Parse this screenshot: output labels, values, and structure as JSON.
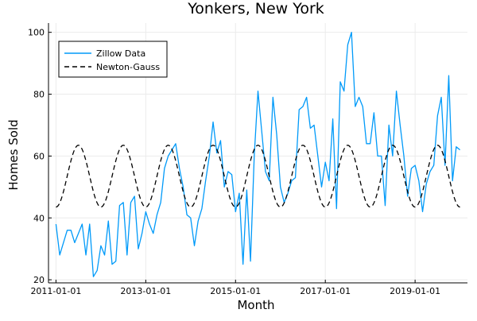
{
  "colors": {
    "series_zillow": "#009af9",
    "series_newton": "#000000",
    "grid": "#ebebeb",
    "axis": "#000000",
    "background": "#ffffff"
  },
  "chart_data": {
    "type": "line",
    "title": "Yonkers, New York",
    "xlabel": "Month",
    "ylabel": "Homes Sold",
    "x_axis_type": "date",
    "xlim": [
      "2010-11-01",
      "2020-03-01"
    ],
    "ylim": [
      19,
      103
    ],
    "xticks": [
      "2011-01-01",
      "2013-01-01",
      "2015-01-01",
      "2017-01-01",
      "2019-01-01"
    ],
    "yticks": [
      20,
      40,
      60,
      80,
      100
    ],
    "grid": true,
    "legend": {
      "position": "top-left",
      "entries": [
        "Zillow Data",
        "Newton-Gauss"
      ]
    },
    "series": [
      {
        "name": "Zillow Data",
        "style": "solid",
        "x": [
          "2011-01-01",
          "2011-02-01",
          "2011-03-01",
          "2011-04-01",
          "2011-05-01",
          "2011-06-01",
          "2011-07-01",
          "2011-08-01",
          "2011-09-01",
          "2011-10-01",
          "2011-11-01",
          "2011-12-01",
          "2012-01-01",
          "2012-02-01",
          "2012-03-01",
          "2012-04-01",
          "2012-05-01",
          "2012-06-01",
          "2012-07-01",
          "2012-08-01",
          "2012-09-01",
          "2012-10-01",
          "2012-11-01",
          "2012-12-01",
          "2013-01-01",
          "2013-02-01",
          "2013-03-01",
          "2013-04-01",
          "2013-05-01",
          "2013-06-01",
          "2013-07-01",
          "2013-08-01",
          "2013-09-01",
          "2013-10-01",
          "2013-11-01",
          "2013-12-01",
          "2014-01-01",
          "2014-02-01",
          "2014-03-01",
          "2014-04-01",
          "2014-05-01",
          "2014-06-01",
          "2014-07-01",
          "2014-08-01",
          "2014-09-01",
          "2014-10-01",
          "2014-11-01",
          "2014-12-01",
          "2015-01-01",
          "2015-02-01",
          "2015-03-01",
          "2015-04-01",
          "2015-05-01",
          "2015-06-01",
          "2015-07-01",
          "2015-08-01",
          "2015-09-01",
          "2015-10-01",
          "2015-11-01",
          "2015-12-01",
          "2016-01-01",
          "2016-02-01",
          "2016-03-01",
          "2016-04-01",
          "2016-05-01",
          "2016-06-01",
          "2016-07-01",
          "2016-08-01",
          "2016-09-01",
          "2016-10-01",
          "2016-11-01",
          "2016-12-01",
          "2017-01-01",
          "2017-02-01",
          "2017-03-01",
          "2017-04-01",
          "2017-05-01",
          "2017-06-01",
          "2017-07-01",
          "2017-08-01",
          "2017-09-01",
          "2017-10-01",
          "2017-11-01",
          "2017-12-01",
          "2018-01-01",
          "2018-02-01",
          "2018-03-01",
          "2018-04-01",
          "2018-05-01",
          "2018-06-01",
          "2018-07-01",
          "2018-08-01",
          "2018-09-01",
          "2018-10-01",
          "2018-11-01",
          "2018-12-01",
          "2019-01-01",
          "2019-02-01",
          "2019-03-01",
          "2019-04-01",
          "2019-05-01",
          "2019-06-01",
          "2019-07-01",
          "2019-08-01",
          "2019-09-01",
          "2019-10-01",
          "2019-11-01",
          "2019-12-01",
          "2020-01-01"
        ],
        "values": [
          38,
          28,
          32,
          36,
          36,
          32,
          35,
          38,
          28,
          38,
          21,
          23,
          31,
          28,
          39,
          25,
          26,
          44,
          45,
          28,
          45,
          47,
          30,
          35,
          42,
          38,
          35,
          41,
          45,
          56,
          60,
          62,
          64,
          56,
          50,
          41,
          40,
          31,
          39,
          43,
          52,
          60,
          71,
          61,
          65,
          50,
          55,
          54,
          42,
          48,
          25,
          49,
          26,
          60,
          81,
          68,
          55,
          52,
          79,
          67,
          50,
          45,
          48,
          52,
          53,
          75,
          76,
          79,
          69,
          70,
          60,
          50,
          58,
          52,
          72,
          43,
          84,
          81,
          96,
          100,
          76,
          79,
          76,
          64,
          64,
          74,
          60,
          60,
          44,
          70,
          60,
          81,
          70,
          60,
          47,
          56,
          57,
          52,
          42,
          51,
          55,
          57,
          73,
          79,
          57,
          86,
          52,
          63,
          62
        ]
      },
      {
        "name": "Newton-Gauss",
        "style": "dashed",
        "model": {
          "mean": 53.5,
          "amplitude": 10,
          "period_months": 12,
          "peak_month_offset": 6
        },
        "x_range": [
          "2011-01-01",
          "2020-01-01"
        ],
        "y_range": [
          43.5,
          63.5
        ]
      }
    ]
  }
}
